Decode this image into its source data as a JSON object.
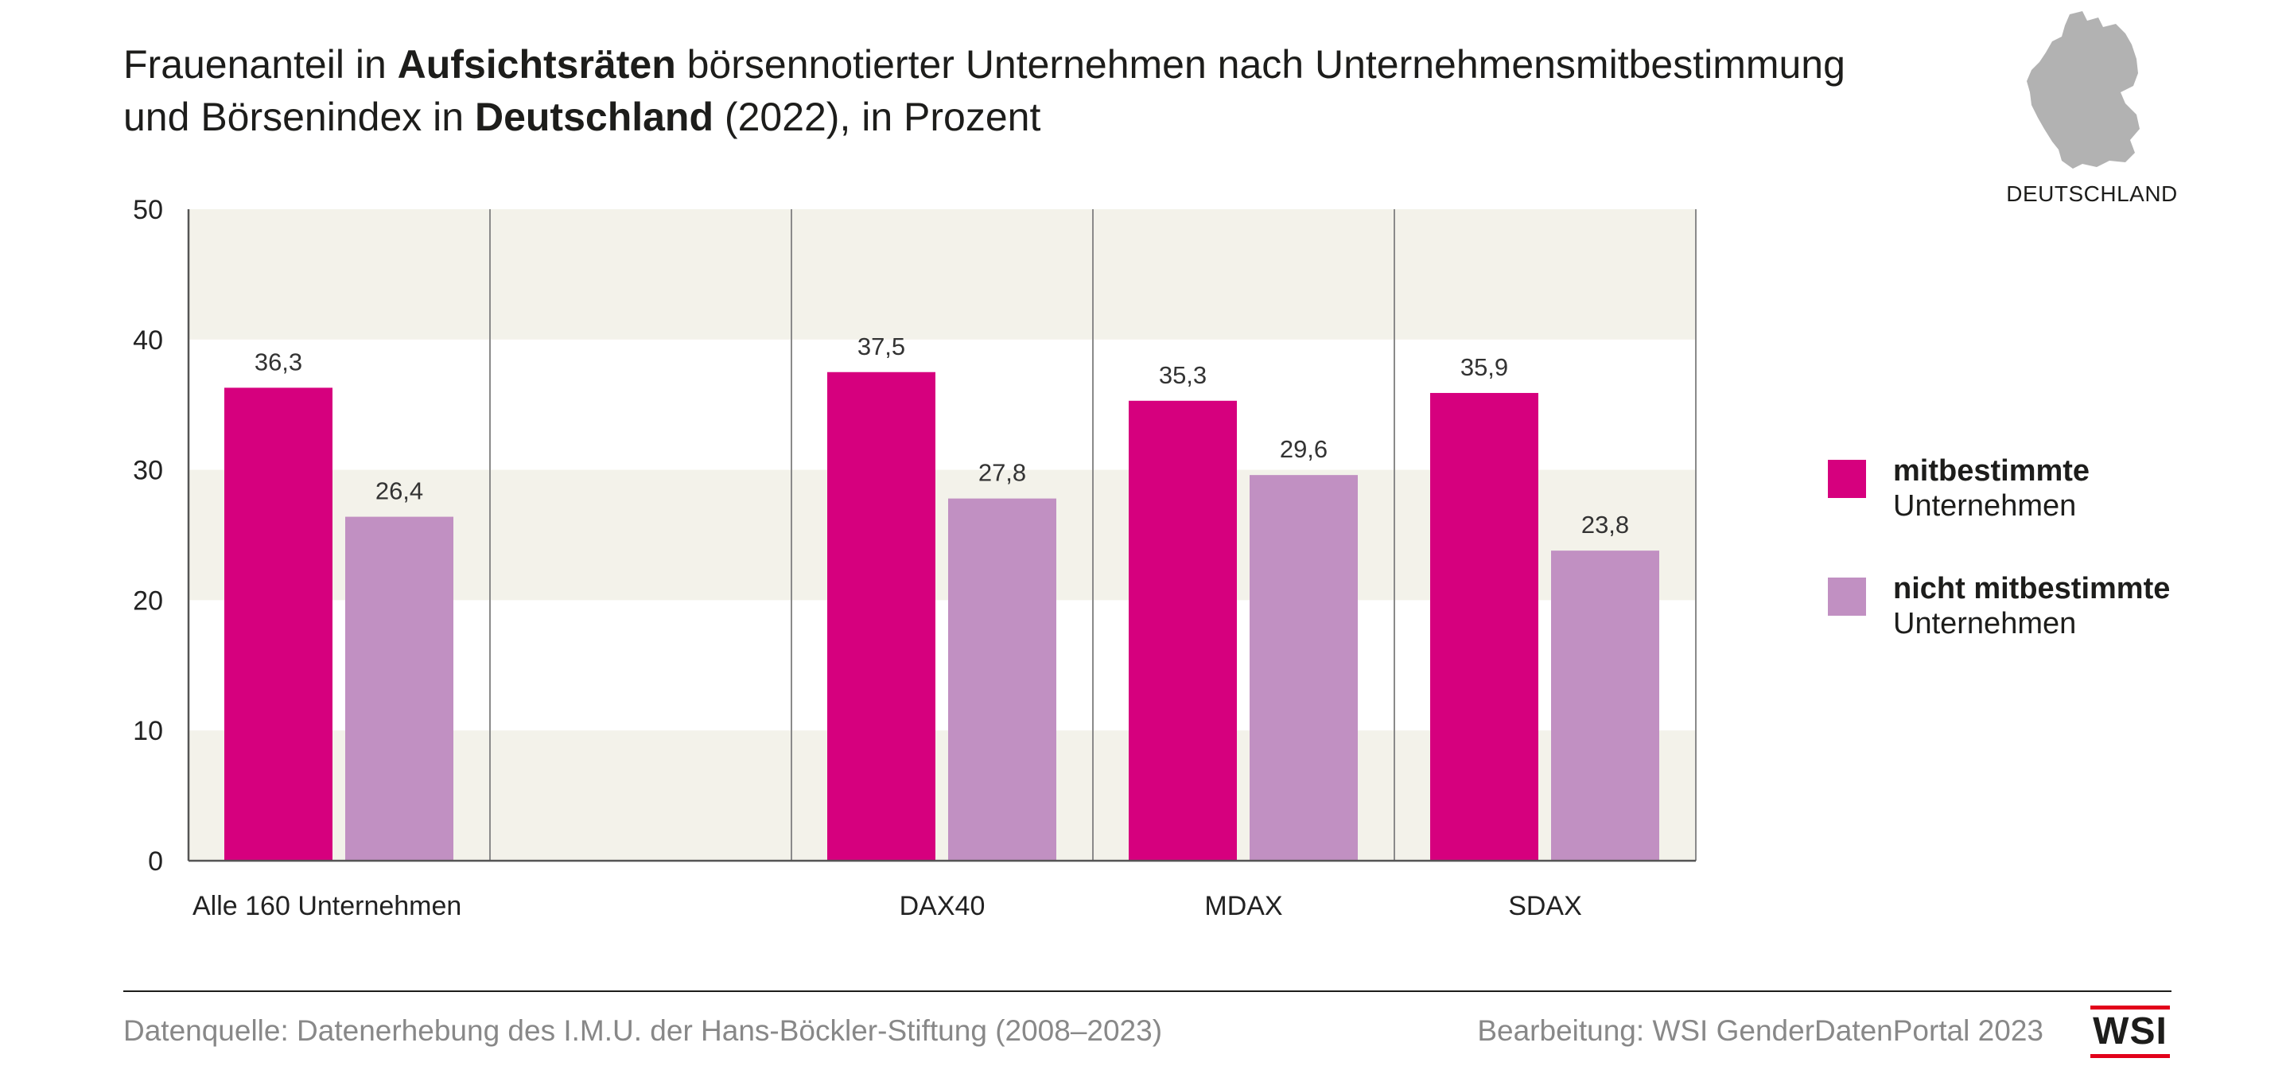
{
  "title": {
    "part1": "Frauenanteil in ",
    "bold1": "Aufsichtsräten",
    "part2": " börsennotierter Unternehmen nach Unternehmensmitbestimmung",
    "part3": "und Börsenindex in ",
    "bold2": "Deutschland",
    "part4": " (2022), in Prozent"
  },
  "map_label": "DEUTSCHLAND",
  "legend": [
    {
      "bold": "mitbestimmte",
      "regular": "Unternehmen",
      "color": "#d6007e"
    },
    {
      "bold": "nicht mitbestimmte",
      "regular": "Unternehmen",
      "color": "#c190c2"
    }
  ],
  "footer": {
    "source": "Datenquelle: Datenerhebung des I.M.U. der Hans-Böckler-Stiftung (2008–2023)",
    "credit": "Bearbeitung: WSI GenderDatenPortal 2023",
    "logo_text": "WSI"
  },
  "colors": {
    "mitbestimmt": "#d6007e",
    "nicht_mitbestimmt": "#c190c2",
    "band": "#f3f2ea",
    "map": "#b2b2b2",
    "logo_red": "#e2001a"
  },
  "chart_data": {
    "type": "bar",
    "categories": [
      "Alle 160 Unternehmen",
      "",
      "DAX40",
      "MDAX",
      "SDAX"
    ],
    "series": [
      {
        "name": "mitbestimmte Unternehmen",
        "values": [
          36.3,
          null,
          37.5,
          35.3,
          35.9
        ],
        "labels": [
          "36,3",
          "",
          "37,5",
          "35,3",
          "35,9"
        ]
      },
      {
        "name": "nicht mitbestimmte Unternehmen",
        "values": [
          26.4,
          null,
          27.8,
          29.6,
          23.8
        ],
        "labels": [
          "26,4",
          "",
          "27,8",
          "29,6",
          "23,8"
        ]
      }
    ],
    "yticks": [
      0,
      10,
      20,
      30,
      40,
      50
    ],
    "ylim": [
      0,
      50
    ],
    "title": "",
    "xlabel": "",
    "ylabel": "",
    "legend_position": "right",
    "grid": "alternating horizontal bands"
  }
}
